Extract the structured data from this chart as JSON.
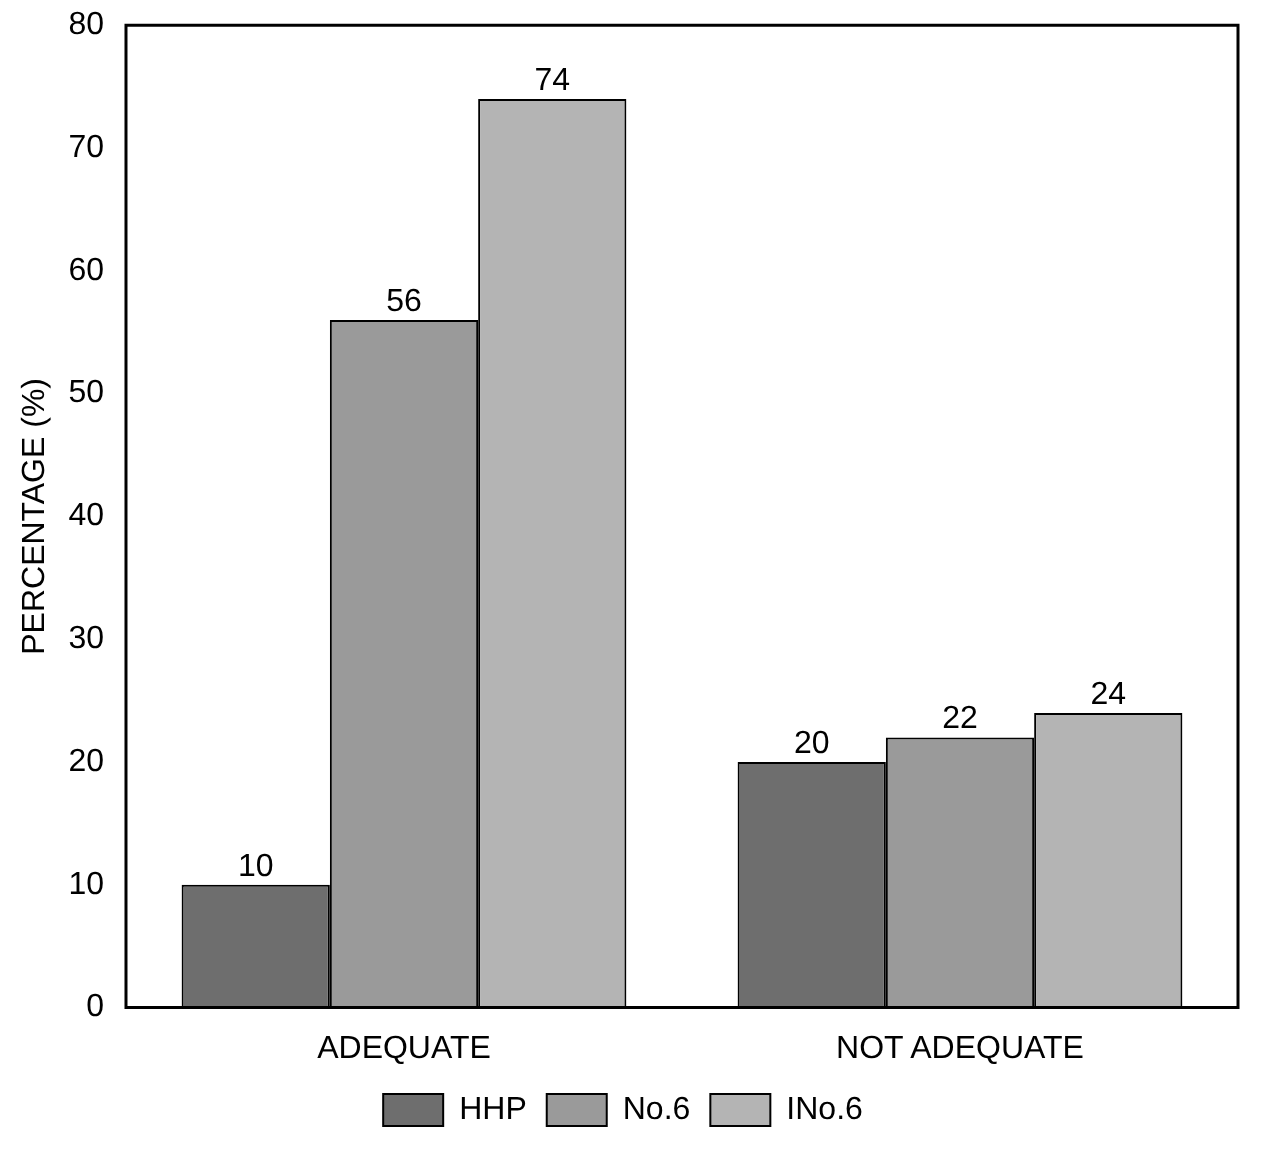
{
  "chart_data": {
    "type": "bar",
    "ylabel": "PERCENTAGE (%)",
    "categories": [
      "ADEQUATE",
      "NOT ADEQUATE"
    ],
    "series": [
      {
        "name": "HHP",
        "color": "#6e6e6e",
        "values": [
          10,
          20
        ]
      },
      {
        "name": "No.6",
        "color": "#9a9a9a",
        "values": [
          56,
          22
        ]
      },
      {
        "name": "INo.6",
        "color": "#b4b4b4",
        "values": [
          74,
          24
        ]
      }
    ],
    "ylim": [
      0,
      80
    ],
    "yticks": [
      0,
      10,
      20,
      30,
      40,
      50,
      60,
      70,
      80
    ],
    "grid": false,
    "legend": "bottom",
    "data_labels": true
  }
}
